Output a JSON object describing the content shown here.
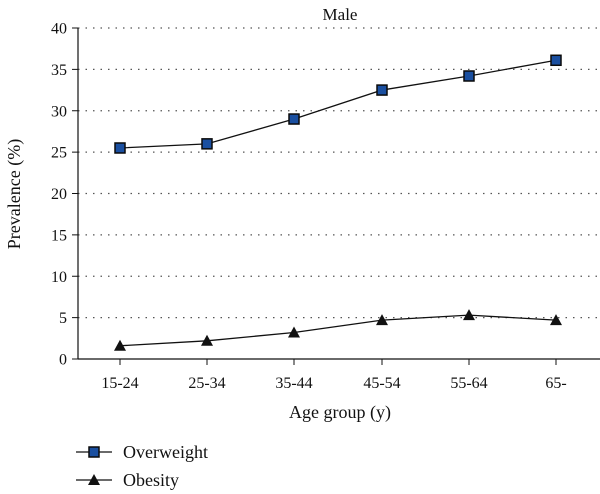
{
  "chart_data": {
    "type": "line",
    "title": "Male",
    "xlabel": "Age group (y)",
    "ylabel": "Prevalence (%)",
    "categories": [
      "15-24",
      "25-34",
      "35-44",
      "45-54",
      "55-64",
      "65-"
    ],
    "ylim": [
      0,
      40
    ],
    "yticks": [
      0,
      5,
      10,
      15,
      20,
      25,
      30,
      35,
      40
    ],
    "grid": "horizontal dotted",
    "legend_position": "bottom-left",
    "series": [
      {
        "name": "Overweight",
        "marker": "square",
        "color": "#1a4fa0",
        "values": [
          25.5,
          26.0,
          29.0,
          32.5,
          34.2,
          36.1
        ]
      },
      {
        "name": "Obesity",
        "marker": "triangle",
        "color": "#111111",
        "values": [
          1.6,
          2.2,
          3.2,
          4.7,
          5.3,
          4.7
        ]
      }
    ]
  }
}
